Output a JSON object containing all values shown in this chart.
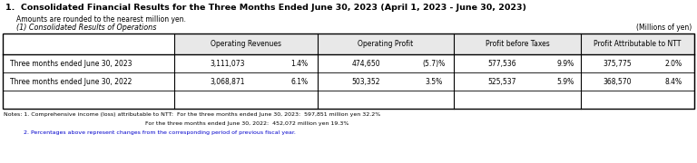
{
  "title": "1.  Consolidated Financial Results for the Three Months Ended June 30, 2023 (April 1, 2023 - June 30, 2023)",
  "subtitle1": "Amounts are rounded to the nearest million yen.",
  "subtitle2": "(1) Consolidated Results of Operations",
  "units": "(Millions of yen)",
  "col_headers": [
    "Operating Revenues",
    "Operating Profit",
    "Profit before Taxes",
    "Profit Attributable to NTT"
  ],
  "row_labels": [
    "Three months ended June 30, 2023",
    "Three months ended June 30, 2022"
  ],
  "data": [
    [
      "3,111,073",
      "1.4%",
      "474,650",
      "(5.7)%",
      "577,536",
      "9.9%",
      "375,775",
      "2.0%"
    ],
    [
      "3,068,871",
      "6.1%",
      "503,352",
      "3.5%",
      "525,537",
      "5.9%",
      "368,570",
      "8.4%"
    ]
  ],
  "notes": [
    "Notes: 1. Comprehensive income (loss) attributable to NTT:  For the three months ended June 30, 2023:  597,851 million yen 32.2%",
    "                                                                              For the three months ended June 30, 2022:  452,072 million yen 19.3%",
    "           2. Percentages above represent changes from the corresponding period of previous fiscal year."
  ],
  "note2_color": "#0000cc",
  "bg_color": "#ffffff",
  "header_bg": "#e8e8e8",
  "border_color": "#000000",
  "text_color": "#000000"
}
